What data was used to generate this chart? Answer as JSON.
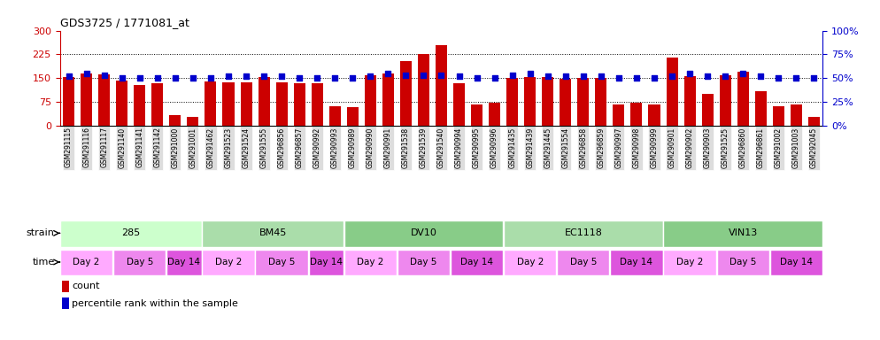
{
  "title": "GDS3725 / 1771081_at",
  "bar_color": "#cc0000",
  "percentile_color": "#0000cc",
  "ylim_left": [
    0,
    300
  ],
  "ylim_right": [
    0,
    100
  ],
  "yticks_left": [
    0,
    75,
    150,
    225,
    300
  ],
  "yticks_right": [
    0,
    25,
    50,
    75,
    100
  ],
  "samples": [
    "GSM291115",
    "GSM291116",
    "GSM291117",
    "GSM291140",
    "GSM291141",
    "GSM291142",
    "GSM291000",
    "GSM291001",
    "GSM291462",
    "GSM291523",
    "GSM291524",
    "GSM291555",
    "GSM296856",
    "GSM296857",
    "GSM290992",
    "GSM290993",
    "GSM290989",
    "GSM290990",
    "GSM290991",
    "GSM291538",
    "GSM291539",
    "GSM291540",
    "GSM290994",
    "GSM290995",
    "GSM290996",
    "GSM291435",
    "GSM291439",
    "GSM291445",
    "GSM291554",
    "GSM296858",
    "GSM296859",
    "GSM290997",
    "GSM290998",
    "GSM290999",
    "GSM290901",
    "GSM290902",
    "GSM290903",
    "GSM291525",
    "GSM296860",
    "GSM296861",
    "GSM291002",
    "GSM291003",
    "GSM292045"
  ],
  "counts": [
    155,
    165,
    162,
    143,
    128,
    135,
    35,
    28,
    140,
    138,
    137,
    155,
    138,
    135,
    133,
    62,
    58,
    160,
    165,
    205,
    225,
    255,
    133,
    68,
    72,
    150,
    155,
    153,
    148,
    150,
    152,
    68,
    72,
    68,
    215,
    157,
    100,
    160,
    170,
    110,
    62,
    66,
    28
  ],
  "percentiles": [
    52,
    55,
    53,
    50,
    50,
    50,
    50,
    50,
    50,
    52,
    52,
    52,
    52,
    50,
    50,
    50,
    50,
    52,
    55,
    53,
    53,
    53,
    52,
    50,
    50,
    53,
    55,
    52,
    52,
    52,
    52,
    50,
    50,
    50,
    52,
    55,
    52,
    52,
    55,
    52,
    50,
    50,
    50
  ],
  "strains": [
    {
      "label": "285",
      "start": 0,
      "end": 8,
      "color": "#ccffcc"
    },
    {
      "label": "BM45",
      "start": 8,
      "end": 16,
      "color": "#aaddaa"
    },
    {
      "label": "DV10",
      "start": 16,
      "end": 25,
      "color": "#88cc88"
    },
    {
      "label": "EC1118",
      "start": 25,
      "end": 34,
      "color": "#aaddaa"
    },
    {
      "label": "VIN13",
      "start": 34,
      "end": 43,
      "color": "#88cc88"
    }
  ],
  "times": [
    {
      "label": "Day 2",
      "start": 0,
      "end": 3,
      "color": "#ffaaff"
    },
    {
      "label": "Day 5",
      "start": 3,
      "end": 6,
      "color": "#ee88ee"
    },
    {
      "label": "Day 14",
      "start": 6,
      "end": 8,
      "color": "#dd55dd"
    },
    {
      "label": "Day 2",
      "start": 8,
      "end": 11,
      "color": "#ffaaff"
    },
    {
      "label": "Day 5",
      "start": 11,
      "end": 14,
      "color": "#ee88ee"
    },
    {
      "label": "Day 14",
      "start": 14,
      "end": 16,
      "color": "#dd55dd"
    },
    {
      "label": "Day 2",
      "start": 16,
      "end": 19,
      "color": "#ffaaff"
    },
    {
      "label": "Day 5",
      "start": 19,
      "end": 22,
      "color": "#ee88ee"
    },
    {
      "label": "Day 14",
      "start": 22,
      "end": 25,
      "color": "#dd55dd"
    },
    {
      "label": "Day 2",
      "start": 25,
      "end": 28,
      "color": "#ffaaff"
    },
    {
      "label": "Day 5",
      "start": 28,
      "end": 31,
      "color": "#ee88ee"
    },
    {
      "label": "Day 14",
      "start": 31,
      "end": 34,
      "color": "#dd55dd"
    },
    {
      "label": "Day 2",
      "start": 34,
      "end": 37,
      "color": "#ffaaff"
    },
    {
      "label": "Day 5",
      "start": 37,
      "end": 40,
      "color": "#ee88ee"
    },
    {
      "label": "Day 14",
      "start": 40,
      "end": 43,
      "color": "#dd55dd"
    }
  ],
  "gridline_values": [
    75,
    150,
    225
  ],
  "gridline_color": "black",
  "gridline_style": "dotted",
  "tick_label_color_left": "#cc0000",
  "tick_label_color_right": "#0000cc",
  "background_color": "white",
  "xlabel_fontsize": 5.5,
  "ylabel_fontsize": 8
}
